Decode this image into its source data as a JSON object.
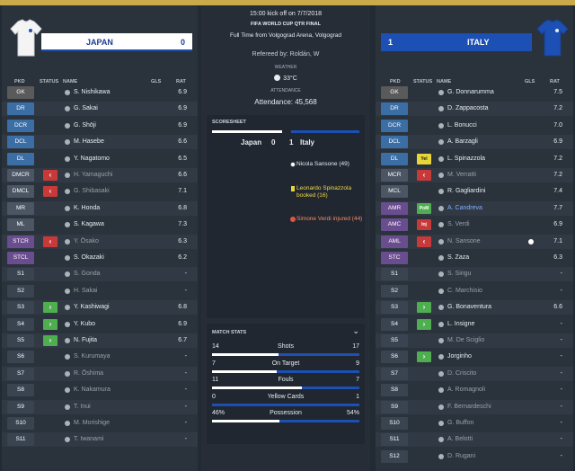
{
  "home": {
    "name": "JAPAN",
    "score": "0",
    "headers": {
      "pkd": "PKD",
      "status": "STATUS",
      "name": "NAME",
      "gls": "GLS",
      "rat": "RAT"
    },
    "players": [
      {
        "pos": "GK",
        "cls": "gk",
        "badge": "",
        "name": "S. Nishikawa",
        "gls": "",
        "rat": "6.9",
        "dim": false
      },
      {
        "pos": "DR",
        "cls": "def",
        "badge": "",
        "name": "G. Sakai",
        "gls": "",
        "rat": "6.9",
        "dim": false
      },
      {
        "pos": "DCR",
        "cls": "def",
        "badge": "",
        "name": "G. Shōji",
        "gls": "",
        "rat": "6.9",
        "dim": false
      },
      {
        "pos": "DCL",
        "cls": "def",
        "badge": "",
        "name": "M. Hasebe",
        "gls": "",
        "rat": "6.6",
        "dim": false
      },
      {
        "pos": "DL",
        "cls": "def",
        "badge": "",
        "name": "Y. Nagatomo",
        "gls": "",
        "rat": "6.5",
        "dim": false
      },
      {
        "pos": "DMCR",
        "cls": "mid",
        "badge": "out",
        "name": "H. Yamaguchi",
        "gls": "",
        "rat": "6.6",
        "dim": true
      },
      {
        "pos": "DMCL",
        "cls": "mid",
        "badge": "out",
        "name": "G. Shibasaki",
        "gls": "",
        "rat": "7.1",
        "dim": true
      },
      {
        "pos": "MR",
        "cls": "mid",
        "badge": "",
        "name": "K. Honda",
        "gls": "",
        "rat": "6.8",
        "dim": false
      },
      {
        "pos": "ML",
        "cls": "mid",
        "badge": "",
        "name": "S. Kagawa",
        "gls": "",
        "rat": "7.3",
        "dim": false
      },
      {
        "pos": "STCR",
        "cls": "att",
        "badge": "out",
        "name": "Y. Ōsako",
        "gls": "",
        "rat": "6.3",
        "dim": true
      },
      {
        "pos": "STCL",
        "cls": "att",
        "badge": "",
        "name": "S. Okazaki",
        "gls": "",
        "rat": "6.2",
        "dim": false
      },
      {
        "pos": "S1",
        "cls": "sub",
        "badge": "",
        "name": "S. Gonda",
        "gls": "",
        "rat": "-",
        "dim": true
      },
      {
        "pos": "S2",
        "cls": "sub",
        "badge": "",
        "name": "H. Sakai",
        "gls": "",
        "rat": "-",
        "dim": true
      },
      {
        "pos": "S3",
        "cls": "sub",
        "badge": "in",
        "name": "Y. Kashiwagi",
        "gls": "",
        "rat": "6.8",
        "dim": false
      },
      {
        "pos": "S4",
        "cls": "sub",
        "badge": "in",
        "name": "Y. Kubo",
        "gls": "",
        "rat": "6.9",
        "dim": false
      },
      {
        "pos": "S5",
        "cls": "sub",
        "badge": "in",
        "name": "N. Fujita",
        "gls": "",
        "rat": "6.7",
        "dim": false
      },
      {
        "pos": "S6",
        "cls": "sub",
        "badge": "",
        "name": "S. Kurumaya",
        "gls": "",
        "rat": "-",
        "dim": true
      },
      {
        "pos": "S7",
        "cls": "sub",
        "badge": "",
        "name": "R. Ōshima",
        "gls": "",
        "rat": "-",
        "dim": true
      },
      {
        "pos": "S8",
        "cls": "sub",
        "badge": "",
        "name": "K. Nakamura",
        "gls": "",
        "rat": "-",
        "dim": true
      },
      {
        "pos": "S9",
        "cls": "sub",
        "badge": "",
        "name": "T. Inui",
        "gls": "",
        "rat": "-",
        "dim": true
      },
      {
        "pos": "S10",
        "cls": "sub",
        "badge": "",
        "name": "M. Morishige",
        "gls": "",
        "rat": "-",
        "dim": true
      },
      {
        "pos": "S11",
        "cls": "sub",
        "badge": "",
        "name": "T. Iwanami",
        "gls": "",
        "rat": "-",
        "dim": true
      }
    ]
  },
  "away": {
    "name": "ITALY",
    "score": "1",
    "headers": {
      "pkd": "PKD",
      "status": "STATUS",
      "name": "NAME",
      "gls": "GLS",
      "rat": "RAT"
    },
    "players": [
      {
        "pos": "GK",
        "cls": "gk",
        "badge": "",
        "name": "G. Donnarumma",
        "gls": "",
        "rat": "7.5",
        "dim": false,
        "hl": false
      },
      {
        "pos": "DR",
        "cls": "def",
        "badge": "",
        "name": "D. Zappacosta",
        "gls": "",
        "rat": "7.2",
        "dim": false,
        "hl": false
      },
      {
        "pos": "DCR",
        "cls": "def",
        "badge": "",
        "name": "L. Bonucci",
        "gls": "",
        "rat": "7.0",
        "dim": false,
        "hl": false
      },
      {
        "pos": "DCL",
        "cls": "def",
        "badge": "",
        "name": "A. Barzagli",
        "gls": "",
        "rat": "6.9",
        "dim": false,
        "hl": false
      },
      {
        "pos": "DL",
        "cls": "def",
        "badge": "yel",
        "name": "L. Spinazzola",
        "gls": "",
        "rat": "7.2",
        "dim": false,
        "hl": false
      },
      {
        "pos": "MCR",
        "cls": "mid",
        "badge": "out",
        "name": "M. Verratti",
        "gls": "",
        "rat": "7.2",
        "dim": true,
        "hl": false
      },
      {
        "pos": "MCL",
        "cls": "mid",
        "badge": "",
        "name": "R. Gagliardini",
        "gls": "",
        "rat": "7.4",
        "dim": false,
        "hl": false
      },
      {
        "pos": "AMR",
        "cls": "att",
        "badge": "potm",
        "name": "A. Candreva",
        "gls": "",
        "rat": "7.7",
        "dim": false,
        "hl": true
      },
      {
        "pos": "AMC",
        "cls": "att",
        "badge": "inj",
        "name": "S. Verdi",
        "gls": "",
        "rat": "6.9",
        "dim": true,
        "hl": false
      },
      {
        "pos": "AML",
        "cls": "att",
        "badge": "out",
        "name": "N. Sansone",
        "gls": "ball",
        "rat": "7.1",
        "dim": true,
        "hl": false
      },
      {
        "pos": "STC",
        "cls": "att",
        "badge": "",
        "name": "S. Zaza",
        "gls": "",
        "rat": "6.3",
        "dim": false,
        "hl": false
      },
      {
        "pos": "S1",
        "cls": "sub",
        "badge": "",
        "name": "S. Sirigu",
        "gls": "",
        "rat": "-",
        "dim": true,
        "hl": false
      },
      {
        "pos": "S2",
        "cls": "sub",
        "badge": "",
        "name": "C. Marchisio",
        "gls": "",
        "rat": "-",
        "dim": true,
        "hl": false
      },
      {
        "pos": "S3",
        "cls": "sub",
        "badge": "in",
        "name": "G. Bonaventura",
        "gls": "",
        "rat": "6.6",
        "dim": false,
        "hl": false
      },
      {
        "pos": "S4",
        "cls": "sub",
        "badge": "in",
        "name": "L. Insigne",
        "gls": "",
        "rat": "-",
        "dim": false,
        "hl": false
      },
      {
        "pos": "S5",
        "cls": "sub",
        "badge": "",
        "name": "M. De Sciglio",
        "gls": "",
        "rat": "-",
        "dim": true,
        "hl": false
      },
      {
        "pos": "S6",
        "cls": "sub",
        "badge": "in",
        "name": "Jorginho",
        "gls": "",
        "rat": "-",
        "dim": false,
        "hl": false
      },
      {
        "pos": "S7",
        "cls": "sub",
        "badge": "",
        "name": "D. Criscito",
        "gls": "",
        "rat": "-",
        "dim": true,
        "hl": false
      },
      {
        "pos": "S8",
        "cls": "sub",
        "badge": "",
        "name": "A. Romagnoli",
        "gls": "",
        "rat": "-",
        "dim": true,
        "hl": false
      },
      {
        "pos": "S9",
        "cls": "sub",
        "badge": "",
        "name": "F. Bernardeschi",
        "gls": "",
        "rat": "-",
        "dim": true,
        "hl": false
      },
      {
        "pos": "S10",
        "cls": "sub",
        "badge": "",
        "name": "G. Buffon",
        "gls": "",
        "rat": "-",
        "dim": true,
        "hl": false
      },
      {
        "pos": "S11",
        "cls": "sub",
        "badge": "",
        "name": "A. Belotti",
        "gls": "",
        "rat": "-",
        "dim": true,
        "hl": false
      },
      {
        "pos": "S12",
        "cls": "sub",
        "badge": "",
        "name": "D. Rugani",
        "gls": "",
        "rat": "-",
        "dim": true,
        "hl": false
      }
    ]
  },
  "match": {
    "kickoff": "15:00 kick off on 7/7/2018",
    "competition": "FIFA WORLD CUP QTR FINAL",
    "venue": "Full Time from Volgograd Arena, Volgograd",
    "referee": "Refereed by: Roldán, W",
    "weather_label": "WEATHER",
    "weather": "33°C",
    "attendance_label": "ATTENDANCE",
    "attendance": "Attendance: 45,568"
  },
  "scoresheet": {
    "title": "SCORESHEET",
    "home": "Japan",
    "home_score": "0",
    "away_score": "1",
    "away": "Italy",
    "events": [
      {
        "icon": "ball",
        "text": "Nicola Sansone (49)",
        "color": "#e8ecf0"
      },
      {
        "icon": "yellow",
        "text": "Leonardo Spinazzola booked (16)",
        "color": "#f0d84a"
      },
      {
        "icon": "injury",
        "text": "Simone Verdi injured (44)",
        "color": "#f08a6a"
      }
    ]
  },
  "stats": {
    "title": "MATCH STATS",
    "rows": [
      {
        "label": "Shots",
        "home": "14",
        "away": "17",
        "home_v": 14,
        "away_v": 17
      },
      {
        "label": "On Target",
        "home": "7",
        "away": "9",
        "home_v": 7,
        "away_v": 9
      },
      {
        "label": "Fouls",
        "home": "11",
        "away": "7",
        "home_v": 11,
        "away_v": 7
      },
      {
        "label": "Yellow Cards",
        "home": "0",
        "away": "1",
        "home_v": 0,
        "away_v": 1
      },
      {
        "label": "Possession",
        "home": "46%",
        "away": "54%",
        "home_v": 46,
        "away_v": 54
      }
    ]
  },
  "colors": {
    "home": "#ffffff",
    "away": "#1c50b4",
    "gold": "#c9a94a"
  }
}
